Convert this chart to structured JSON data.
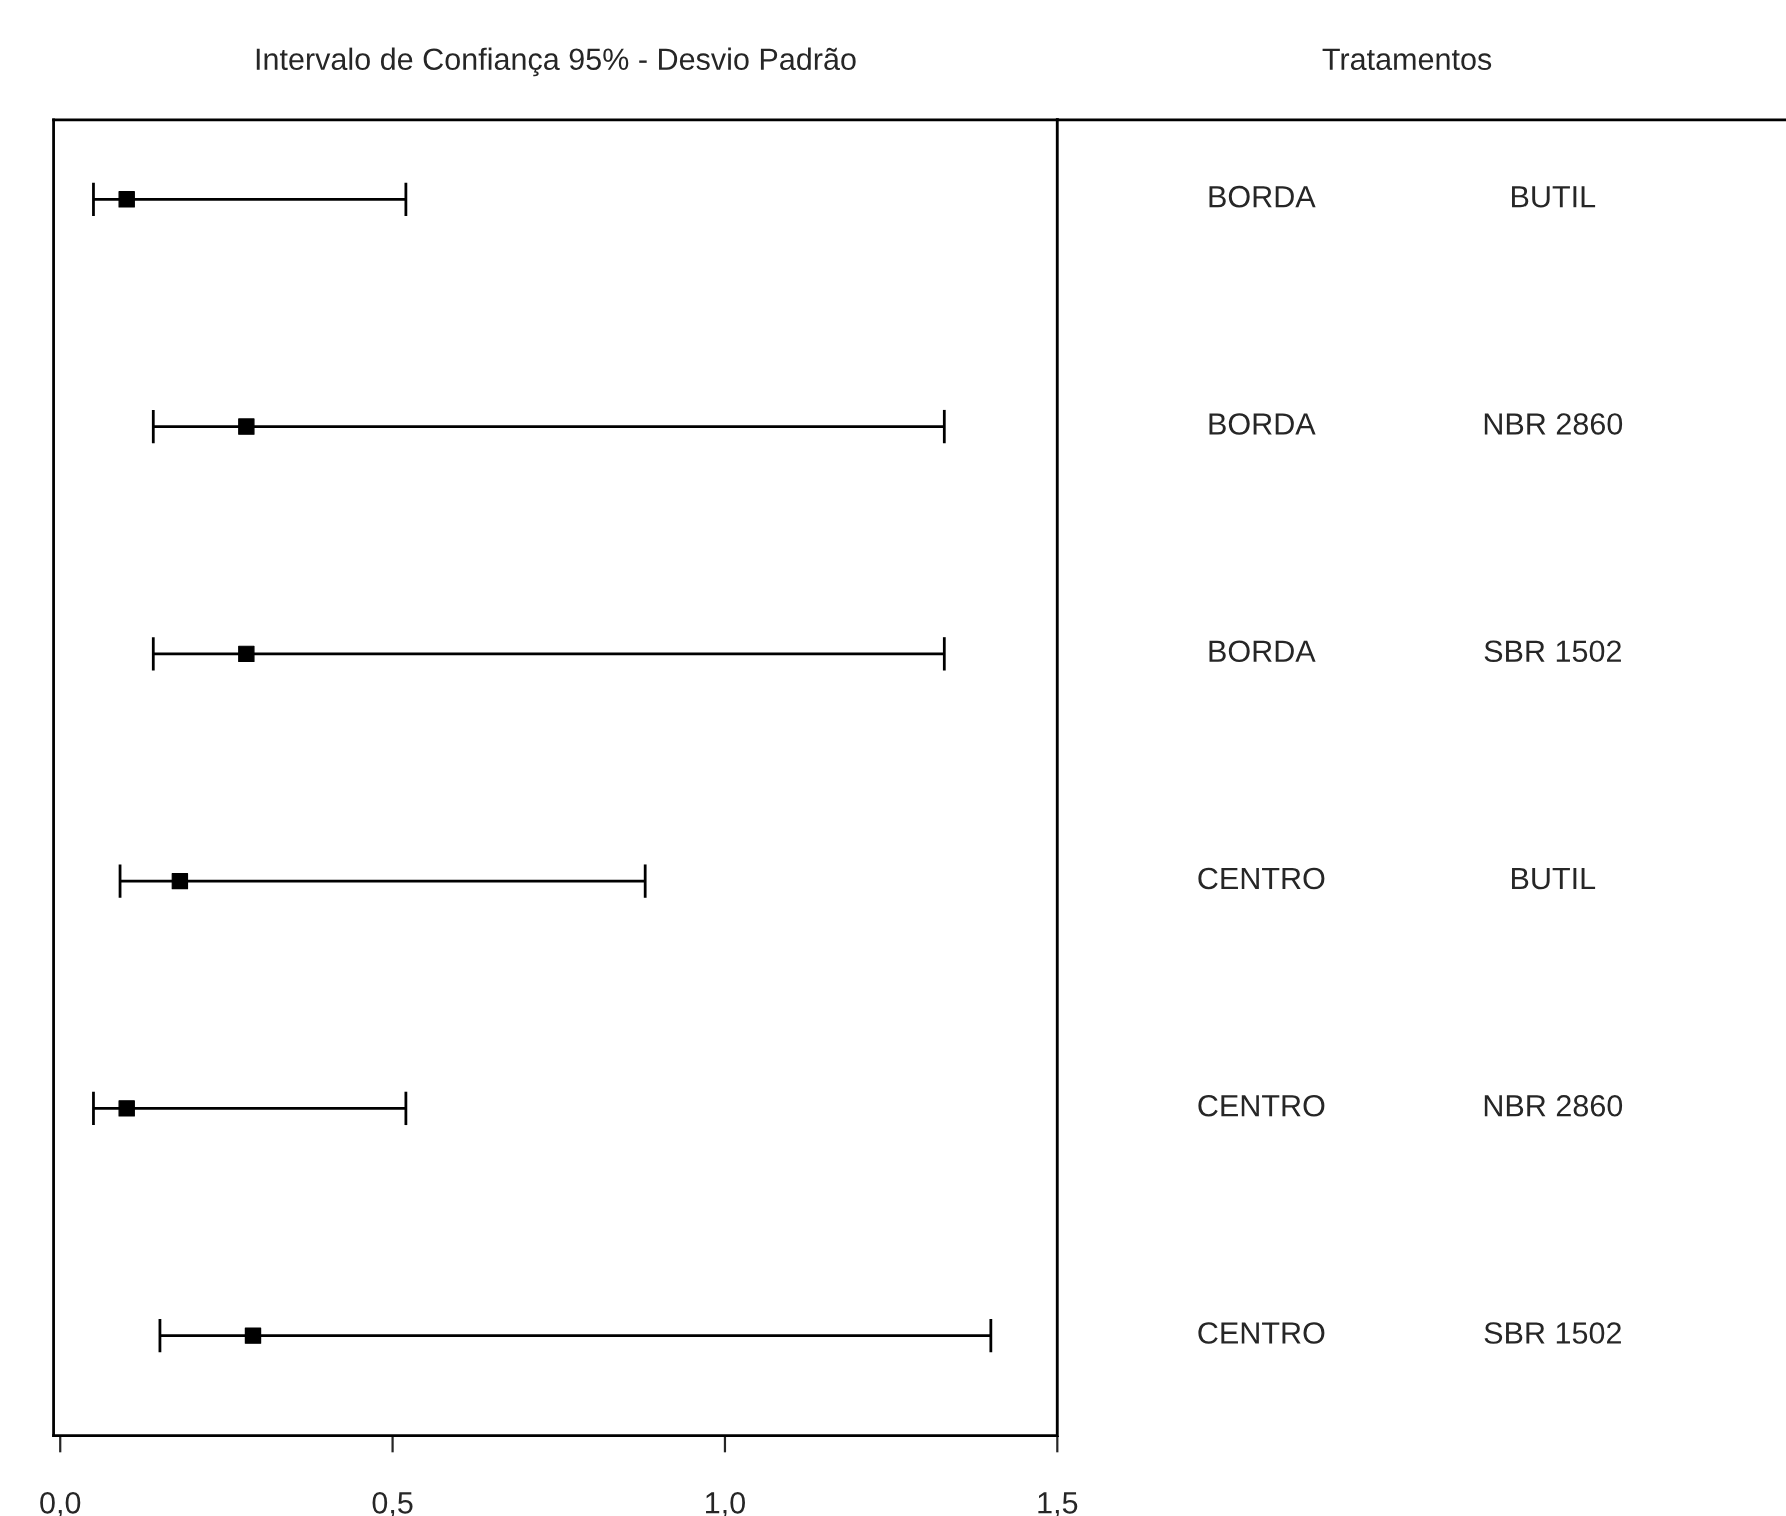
{
  "chart_data": {
    "type": "scatter",
    "orientation": "horizontal",
    "title": "Intervalo de Confiança 95% - Desvio Padrão",
    "annotations": [
      "Tratamentos"
    ],
    "categories": [
      "BORDA BUTIL",
      "BORDA NBR 2860",
      "BORDA SBR 1502",
      "CENTRO BUTIL",
      "CENTRO NBR 2860",
      "CENTRO SBR 1502"
    ],
    "values": [
      0.1,
      0.28,
      0.28,
      0.18,
      0.1,
      0.29
    ],
    "errors": [
      [
        0.05,
        0.52
      ],
      [
        0.14,
        1.33
      ],
      [
        0.14,
        1.33
      ],
      [
        0.09,
        0.88
      ],
      [
        0.05,
        0.52
      ],
      [
        0.15,
        1.4
      ]
    ],
    "color": "#000000",
    "marker": "square",
    "xlim": [
      -0.01,
      1.5
    ],
    "xticks": [
      {
        "value": 0,
        "label": "0,0"
      },
      {
        "value": 0.5,
        "label": "0,5"
      },
      {
        "value": 1,
        "label": "1,0"
      },
      {
        "value": 1.5,
        "label": "1,5"
      }
    ],
    "grid": false,
    "legend": false
  }
}
